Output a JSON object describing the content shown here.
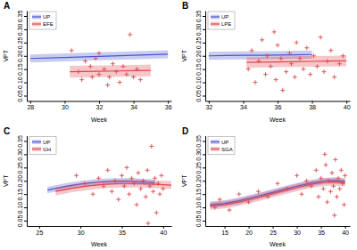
{
  "chart_data": [
    {
      "type": "line",
      "title": "A",
      "x_label": "Week",
      "y_label": "VPT",
      "legend": "upper left",
      "grid": false,
      "xlim": [
        27.8,
        36.2
      ],
      "xticks": [
        28,
        30,
        32,
        34,
        36
      ],
      "ylim": [
        0.03,
        0.37
      ],
      "yticks": [
        0.05,
        {
          "value": 0.1,
          "label": "0.10"
        },
        0.15,
        {
          "value": 0.2,
          "label": "0.20"
        },
        0.25,
        {
          "value": 0.3,
          "label": "0.30"
        },
        0.35
      ],
      "series": [
        {
          "name": "UP",
          "color": "#4a55d0",
          "type": "line",
          "line_style": "solid",
          "x": [
            28,
            30,
            32,
            34,
            36
          ],
          "values": [
            0.19,
            0.194,
            0.198,
            0.202,
            0.206
          ],
          "lower": [
            0.175,
            0.179,
            0.183,
            0.187,
            0.191
          ],
          "upper": [
            0.205,
            0.209,
            0.213,
            0.217,
            0.221
          ]
        },
        {
          "name": "EFE",
          "color": "#e0474c",
          "type": "line",
          "line_style": "solid",
          "marker": "plus",
          "x": [
            30.3,
            31,
            32,
            33,
            34,
            35
          ],
          "values": [
            0.14,
            0.141,
            0.142,
            0.143,
            0.144,
            0.145
          ],
          "lower": [
            0.118,
            0.119,
            0.12,
            0.121,
            0.122,
            0.123
          ],
          "upper": [
            0.162,
            0.163,
            0.164,
            0.165,
            0.166,
            0.167
          ],
          "points_x": [
            30.4,
            30.8,
            31.0,
            31.2,
            31.5,
            31.6,
            31.8,
            32.0,
            32.0,
            32.3,
            32.5,
            32.6,
            32.8,
            33.0,
            33.2,
            33.4,
            33.6,
            33.8,
            34.0,
            34.2,
            34.4
          ],
          "points_y": [
            0.22,
            0.14,
            0.11,
            0.18,
            0.16,
            0.12,
            0.19,
            0.13,
            0.21,
            0.15,
            0.09,
            0.12,
            0.17,
            0.14,
            0.1,
            0.16,
            0.13,
            0.28,
            0.12,
            0.15,
            0.11
          ]
        }
      ]
    },
    {
      "type": "line",
      "title": "B",
      "x_label": "Week",
      "y_label": "VPT",
      "legend": "upper left",
      "grid": false,
      "xlim": [
        31.8,
        40.2
      ],
      "xticks": [
        32,
        34,
        36,
        38,
        40
      ],
      "ylim": [
        0.03,
        0.37
      ],
      "yticks": [
        0.05,
        {
          "value": 0.1,
          "label": "0.10"
        },
        0.15,
        {
          "value": 0.2,
          "label": "0.20"
        },
        0.25,
        {
          "value": 0.3,
          "label": "0.30"
        },
        0.35
      ],
      "series": [
        {
          "name": "UP",
          "color": "#4a55d0",
          "type": "line",
          "line_style": "solid",
          "x": [
            32,
            33,
            34,
            35,
            36,
            37,
            38
          ],
          "values": [
            0.2,
            0.201,
            0.202,
            0.202,
            0.203,
            0.204,
            0.205
          ],
          "lower": [
            0.185,
            0.186,
            0.187,
            0.187,
            0.188,
            0.189,
            0.19
          ],
          "upper": [
            0.215,
            0.216,
            0.217,
            0.217,
            0.218,
            0.219,
            0.22
          ]
        },
        {
          "name": "LPE",
          "color": "#e0474c",
          "type": "line",
          "line_style": "solid",
          "marker": "plus",
          "x": [
            34.2,
            35,
            36,
            37,
            38,
            39,
            40
          ],
          "values": [
            0.175,
            0.176,
            0.177,
            0.178,
            0.179,
            0.18,
            0.181
          ],
          "lower": [
            0.155,
            0.156,
            0.157,
            0.158,
            0.159,
            0.16,
            0.161
          ],
          "upper": [
            0.195,
            0.196,
            0.197,
            0.198,
            0.199,
            0.2,
            0.201
          ],
          "points_x": [
            34.3,
            34.5,
            34.7,
            34.9,
            35.1,
            35.3,
            35.4,
            35.6,
            35.8,
            35.9,
            36.0,
            36.2,
            36.3,
            36.5,
            36.7,
            36.8,
            37.0,
            37.1,
            37.3,
            37.5,
            37.7,
            37.9,
            38.1,
            38.3,
            38.5,
            38.7,
            38.9,
            39.1,
            39.3,
            39.6,
            39.8
          ],
          "points_y": [
            0.15,
            0.22,
            0.1,
            0.18,
            0.26,
            0.13,
            0.2,
            0.16,
            0.29,
            0.11,
            0.24,
            0.19,
            0.07,
            0.14,
            0.21,
            0.17,
            0.12,
            0.25,
            0.19,
            0.15,
            0.23,
            0.13,
            0.2,
            0.16,
            0.27,
            0.14,
            0.18,
            0.22,
            0.12,
            0.17,
            0.2
          ]
        }
      ]
    },
    {
      "type": "line",
      "title": "C",
      "x_label": "Week",
      "y_label": "VPT",
      "legend": "upper left",
      "grid": false,
      "xlim": [
        23.5,
        41
      ],
      "xticks": [
        25,
        30,
        35,
        40
      ],
      "ylim": [
        0.03,
        0.37
      ],
      "yticks": [
        0.05,
        {
          "value": 0.1,
          "label": "0.10"
        },
        0.15,
        {
          "value": 0.2,
          "label": "0.20"
        },
        0.25,
        {
          "value": 0.3,
          "label": "0.30"
        },
        0.35
      ],
      "series": [
        {
          "name": "UP",
          "color": "#4a55d0",
          "type": "line",
          "line_style": "solid",
          "x": [
            26,
            28,
            30,
            32,
            34,
            36,
            38,
            39
          ],
          "values": [
            0.165,
            0.178,
            0.188,
            0.195,
            0.198,
            0.198,
            0.195,
            0.193
          ],
          "lower": [
            0.153,
            0.166,
            0.176,
            0.183,
            0.186,
            0.186,
            0.183,
            0.181
          ],
          "upper": [
            0.177,
            0.19,
            0.2,
            0.207,
            0.21,
            0.21,
            0.207,
            0.205
          ]
        },
        {
          "name": "GH",
          "color": "#e0474c",
          "type": "line",
          "line_style": "solid",
          "marker": "plus",
          "x": [
            27,
            29,
            31,
            33,
            35,
            37,
            39,
            41
          ],
          "values": [
            0.16,
            0.172,
            0.181,
            0.187,
            0.19,
            0.19,
            0.187,
            0.184
          ],
          "lower": [
            0.145,
            0.157,
            0.166,
            0.172,
            0.175,
            0.175,
            0.172,
            0.169
          ],
          "upper": [
            0.175,
            0.187,
            0.196,
            0.202,
            0.205,
            0.205,
            0.202,
            0.199
          ],
          "points_x": [
            29.5,
            30.5,
            31.5,
            32.2,
            32.8,
            33.3,
            33.8,
            34.2,
            34.6,
            35.0,
            35.3,
            35.6,
            35.9,
            36.2,
            36.5,
            36.8,
            37.0,
            37.3,
            37.6,
            37.9,
            38.1,
            38.2,
            38.4,
            38.6,
            38.8,
            39.0,
            39.2,
            39.4,
            39.6,
            39.8,
            40.0
          ],
          "points_y": [
            0.22,
            0.19,
            0.15,
            0.21,
            0.18,
            0.24,
            0.16,
            0.2,
            0.13,
            0.22,
            0.18,
            0.25,
            0.15,
            0.21,
            0.19,
            0.11,
            0.23,
            0.17,
            0.2,
            0.14,
            0.24,
            0.04,
            0.18,
            0.33,
            0.16,
            0.21,
            0.08,
            0.19,
            0.15,
            0.22,
            0.17
          ]
        }
      ]
    },
    {
      "type": "line",
      "title": "D",
      "x_label": "Week",
      "y_label": "VPT",
      "legend": "upper left",
      "grid": false,
      "xlim": [
        11,
        41
      ],
      "xticks": [
        15,
        20,
        25,
        30,
        35,
        40
      ],
      "ylim": [
        0.03,
        0.37
      ],
      "yticks": [
        0.05,
        {
          "value": 0.1,
          "label": "0.10"
        },
        0.15,
        {
          "value": 0.2,
          "label": "0.20"
        },
        0.25,
        {
          "value": 0.3,
          "label": "0.30"
        },
        0.35
      ],
      "series": [
        {
          "name": "UP",
          "color": "#4a55d0",
          "type": "line",
          "line_style": "solid",
          "x": [
            12,
            15,
            18,
            21,
            24,
            27,
            30,
            33,
            36,
            38,
            40
          ],
          "values": [
            0.11,
            0.115,
            0.125,
            0.138,
            0.152,
            0.166,
            0.18,
            0.192,
            0.2,
            0.201,
            0.198
          ],
          "lower": [
            0.098,
            0.103,
            0.113,
            0.126,
            0.14,
            0.154,
            0.168,
            0.18,
            0.188,
            0.189,
            0.186
          ],
          "upper": [
            0.122,
            0.127,
            0.137,
            0.15,
            0.164,
            0.178,
            0.192,
            0.204,
            0.212,
            0.213,
            0.21
          ]
        },
        {
          "name": "SGA",
          "color": "#e0474c",
          "type": "line",
          "line_style": "solid",
          "marker": "plus",
          "x": [
            12,
            15,
            18,
            21,
            24,
            27,
            30,
            33,
            36,
            38,
            40
          ],
          "values": [
            0.105,
            0.11,
            0.12,
            0.133,
            0.147,
            0.161,
            0.175,
            0.187,
            0.195,
            0.196,
            0.193
          ],
          "lower": [
            0.091,
            0.096,
            0.106,
            0.119,
            0.133,
            0.147,
            0.161,
            0.173,
            0.181,
            0.182,
            0.179
          ],
          "upper": [
            0.119,
            0.124,
            0.134,
            0.147,
            0.161,
            0.175,
            0.189,
            0.201,
            0.209,
            0.21,
            0.207
          ],
          "points_x": [
            13,
            14,
            16,
            18,
            20,
            22,
            24,
            26,
            28,
            30,
            31,
            32,
            33,
            34,
            34.5,
            35,
            35.5,
            35.8,
            36,
            36.3,
            36.6,
            37,
            37.3,
            37.6,
            37.8,
            38,
            38.3,
            38.6,
            38.9,
            39.2,
            39.5,
            39.8,
            40
          ],
          "points_y": [
            0.1,
            0.13,
            0.09,
            0.15,
            0.12,
            0.16,
            0.14,
            0.19,
            0.17,
            0.22,
            0.15,
            0.2,
            0.18,
            0.24,
            0.14,
            0.21,
            0.17,
            0.3,
            0.26,
            0.12,
            0.2,
            0.16,
            0.23,
            0.18,
            0.07,
            0.28,
            0.14,
            0.21,
            0.17,
            0.24,
            0.19,
            0.11,
            0.22
          ]
        }
      ]
    }
  ]
}
